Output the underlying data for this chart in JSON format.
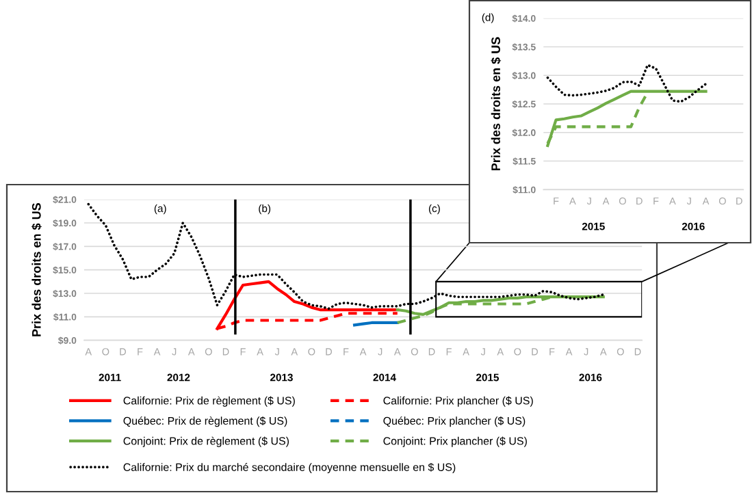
{
  "chart_data": [
    {
      "type": "line",
      "ylabel": "Prix des droits en $ US",
      "ylim": [
        9,
        21
      ],
      "yticks": [
        {
          "value": 9,
          "label": "$9.0"
        },
        {
          "value": 11,
          "label": "$11.0"
        },
        {
          "value": 13,
          "label": "$13.0"
        },
        {
          "value": 15,
          "label": "$15.0"
        },
        {
          "value": 17,
          "label": "$17.0"
        },
        {
          "value": 19,
          "label": "$19.0"
        },
        {
          "value": 21,
          "label": "$21.0"
        }
      ],
      "categories": [
        "A",
        null,
        "O\n2011",
        null,
        "D",
        null,
        "F",
        null,
        "A",
        null,
        "J\n2012",
        null,
        "A",
        null,
        "O",
        null,
        "D",
        null,
        "F",
        null,
        "A",
        null,
        "J\n2013",
        null,
        "A",
        null,
        "O",
        null,
        "D",
        null,
        "F",
        null,
        "A",
        null,
        "J\n2014",
        null,
        "A",
        null,
        "O",
        null,
        "D",
        null,
        "F",
        null,
        "A",
        null,
        "J\n2015",
        null,
        "A",
        null,
        "O",
        null,
        "D",
        null,
        "F",
        null,
        "A",
        null,
        "J\n2016",
        null,
        "A",
        null,
        "O",
        null,
        "D"
      ],
      "grid": "y",
      "legend": "bottom",
      "series": [
        {
          "name": "Californie: Prix de règlement ($ US)",
          "color": "#ff0000",
          "line_style": "solid",
          "values": [
            null,
            null,
            null,
            null,
            null,
            null,
            null,
            null,
            null,
            null,
            null,
            null,
            null,
            null,
            null,
            10.0,
            11.2,
            12.5,
            13.7,
            13.8,
            13.9,
            14.0,
            13.4,
            12.9,
            12.3,
            12.1,
            11.8,
            11.6,
            11.6,
            11.6,
            11.6,
            11.6,
            11.6,
            11.6,
            11.6,
            11.6,
            11.6,
            null,
            null,
            null,
            null,
            null,
            null,
            null,
            null,
            null,
            null,
            null,
            null,
            null,
            null,
            null,
            null,
            null,
            null,
            null,
            null,
            null,
            null,
            null,
            null,
            null,
            null,
            null,
            null
          ]
        },
        {
          "name": "Québec: Prix de règlement ($ US)",
          "color": "#0070c0",
          "line_style": "solid",
          "values": [
            null,
            null,
            null,
            null,
            null,
            null,
            null,
            null,
            null,
            null,
            null,
            null,
            null,
            null,
            null,
            null,
            null,
            null,
            null,
            null,
            null,
            null,
            null,
            null,
            null,
            null,
            null,
            null,
            null,
            null,
            null,
            10.3,
            10.4,
            10.5,
            10.5,
            10.5,
            10.5,
            null,
            null,
            null,
            null,
            null,
            null,
            null,
            null,
            null,
            null,
            null,
            null,
            null,
            null,
            null,
            null,
            null,
            null,
            null,
            null,
            null,
            null,
            null,
            null,
            null,
            null,
            null,
            null
          ]
        },
        {
          "name": "Conjoint: Prix de règlement ($ US)",
          "color": "#70ad47",
          "line_style": "solid",
          "values": [
            null,
            null,
            null,
            null,
            null,
            null,
            null,
            null,
            null,
            null,
            null,
            null,
            null,
            null,
            null,
            null,
            null,
            null,
            null,
            null,
            null,
            null,
            null,
            null,
            null,
            null,
            null,
            null,
            null,
            null,
            null,
            null,
            null,
            null,
            null,
            null,
            11.6,
            11.5,
            11.3,
            11.2,
            11.5,
            11.8,
            12.2,
            12.2,
            12.3,
            12.3,
            12.4,
            12.4,
            12.5,
            12.6,
            12.6,
            12.7,
            12.7,
            12.7,
            12.7,
            12.7,
            12.7,
            12.7,
            12.7,
            12.7,
            12.7,
            null,
            null,
            null,
            null
          ]
        },
        {
          "name": "Californie: Prix du marché secondaire (moyenne mensuelle en $ US)",
          "color": "#000000",
          "line_style": "dotted",
          "values": [
            20.6,
            19.6,
            18.8,
            17.1,
            15.9,
            14.2,
            14.4,
            14.4,
            15.0,
            15.5,
            16.4,
            19.0,
            17.8,
            16.2,
            14.3,
            12.0,
            13.2,
            14.6,
            14.4,
            14.5,
            14.6,
            14.6,
            14.6,
            13.8,
            13.1,
            12.3,
            12.0,
            11.9,
            11.7,
            12.1,
            12.2,
            12.1,
            12.0,
            11.8,
            11.9,
            11.9,
            11.9,
            12.1,
            12.1,
            12.3,
            12.6,
            13.0,
            12.8,
            12.7,
            12.7,
            12.7,
            12.7,
            12.7,
            12.7,
            12.8,
            12.9,
            12.9,
            12.8,
            13.2,
            13.1,
            12.8,
            12.6,
            12.5,
            12.6,
            12.7,
            12.9,
            null,
            null,
            null,
            null
          ]
        },
        {
          "name": "Californie: Prix plancher ($ US)",
          "color": "#ff0000",
          "line_style": "dashed",
          "values": [
            null,
            null,
            null,
            null,
            null,
            null,
            null,
            null,
            null,
            null,
            null,
            null,
            null,
            null,
            null,
            10.0,
            10.2,
            10.5,
            10.7,
            10.7,
            10.7,
            10.7,
            10.7,
            10.7,
            10.7,
            10.7,
            10.7,
            10.7,
            10.9,
            11.1,
            11.3,
            11.3,
            11.3,
            11.3,
            11.3,
            11.3,
            11.3,
            null,
            null,
            null,
            null,
            null,
            null,
            null,
            null,
            null,
            null,
            null,
            null,
            null,
            null,
            null,
            null,
            null,
            null,
            null,
            null,
            null,
            null,
            null,
            null,
            null,
            null,
            null,
            null
          ]
        },
        {
          "name": "Québec: Prix plancher ($ US)",
          "color": "#0070c0",
          "line_style": "dashed",
          "values": [
            null,
            null,
            null,
            null,
            null,
            null,
            null,
            null,
            null,
            null,
            null,
            null,
            null,
            null,
            null,
            null,
            null,
            null,
            null,
            null,
            null,
            null,
            null,
            null,
            null,
            null,
            null,
            null,
            null,
            null,
            null,
            null,
            null,
            null,
            null,
            null,
            null,
            null,
            null,
            null,
            null,
            null,
            null,
            null,
            null,
            null,
            null,
            null,
            null,
            null,
            null,
            null,
            null,
            null,
            null,
            null,
            null,
            null,
            null,
            null,
            null,
            null,
            null,
            null,
            null
          ]
        },
        {
          "name": "Conjoint: Prix plancher ($ US)",
          "color": "#70ad47",
          "line_style": "dashed",
          "values": [
            null,
            null,
            null,
            null,
            null,
            null,
            null,
            null,
            null,
            null,
            null,
            null,
            null,
            null,
            null,
            null,
            null,
            null,
            null,
            null,
            null,
            null,
            null,
            null,
            null,
            null,
            null,
            null,
            null,
            null,
            null,
            null,
            null,
            null,
            null,
            null,
            10.5,
            10.7,
            10.9,
            11.1,
            11.4,
            11.8,
            12.1,
            12.1,
            12.1,
            12.1,
            12.1,
            12.1,
            12.1,
            12.1,
            12.1,
            12.1,
            12.3,
            12.5,
            12.7,
            null,
            null,
            null,
            null,
            null,
            null,
            null,
            null,
            null,
            null
          ]
        }
      ],
      "annotations": [
        "(a)",
        "(b)",
        "(c)"
      ]
    },
    {
      "type": "line",
      "ylabel": "Prix des droits en $ US",
      "ylim": [
        11,
        14
      ],
      "yticks": [
        {
          "value": 11,
          "label": "$11.0"
        },
        {
          "value": 11.5,
          "label": "$11.5"
        },
        {
          "value": 12,
          "label": "$12.0"
        },
        {
          "value": 12.5,
          "label": "$12.5"
        },
        {
          "value": 13,
          "label": "$13.0"
        },
        {
          "value": 13.5,
          "label": "$13.5"
        },
        {
          "value": 14,
          "label": "$14.0"
        }
      ],
      "categories": [
        null,
        "F",
        null,
        "A",
        null,
        "J\n2015",
        null,
        "A",
        null,
        "O",
        null,
        "D",
        null,
        "F",
        null,
        "A",
        null,
        "J\n2016",
        null,
        "A",
        null,
        "O",
        null,
        "D"
      ],
      "grid": "y",
      "series": [
        {
          "color": "#70ad47",
          "line_style": "solid",
          "values": [
            11.77,
            12.22,
            12.24,
            12.27,
            12.29,
            12.36,
            12.43,
            12.51,
            12.58,
            12.65,
            12.72,
            12.72,
            12.72,
            12.72,
            12.72,
            12.72,
            12.72,
            12.72,
            12.72,
            12.72,
            null,
            null,
            null,
            null
          ]
        },
        {
          "color": "#000000",
          "line_style": "dotted",
          "values": [
            12.96,
            12.8,
            12.66,
            12.65,
            12.66,
            12.68,
            12.7,
            12.73,
            12.78,
            12.88,
            12.89,
            12.82,
            13.18,
            13.12,
            12.84,
            12.56,
            12.54,
            12.62,
            12.74,
            12.85,
            null,
            null,
            null,
            null
          ]
        },
        {
          "color": "#70ad47",
          "line_style": "dashed",
          "values": [
            11.81,
            12.1,
            12.1,
            12.1,
            12.1,
            12.1,
            12.1,
            12.1,
            12.1,
            12.1,
            12.1,
            12.44,
            12.7,
            null,
            null,
            null,
            null,
            null,
            null,
            null,
            null,
            null,
            null,
            null
          ]
        }
      ],
      "annotations": [
        "(d)"
      ]
    }
  ]
}
